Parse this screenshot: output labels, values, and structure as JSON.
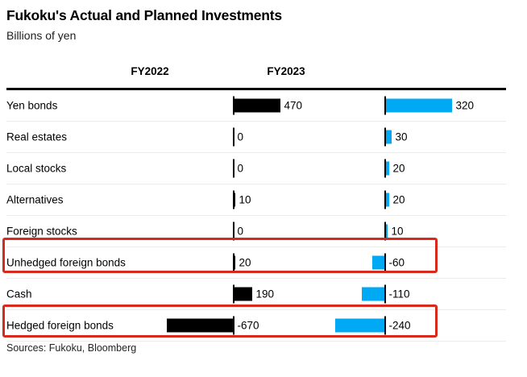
{
  "header": {
    "title": "Fukoku's Actual and Planned Investments",
    "subtitle": "Billions of yen"
  },
  "columns": [
    "FY2022",
    "FY2023"
  ],
  "chart_data": {
    "type": "bar",
    "orientation": "horizontal",
    "unit": "Billions of yen",
    "categories": [
      "Yen bonds",
      "Real estates",
      "Local stocks",
      "Alternatives",
      "Foreign stocks",
      "Unhedged foreign bonds",
      "Cash",
      "Hedged foreign bonds"
    ],
    "series": [
      {
        "name": "FY2022",
        "color": "#000000",
        "values": [
          470,
          0,
          0,
          10,
          0,
          20,
          190,
          -670
        ]
      },
      {
        "name": "FY2023",
        "color": "#00a9f4",
        "values": [
          320,
          30,
          20,
          20,
          10,
          -60,
          -110,
          -240
        ]
      }
    ],
    "value_labels": [
      [
        "470",
        "0",
        "0",
        "10",
        "0",
        "20",
        "190",
        "-670"
      ],
      [
        "320",
        "30",
        "20",
        "20",
        "10",
        "-60",
        "-110",
        "-240"
      ]
    ],
    "highlighted_categories": [
      "Unhedged foreign bonds",
      "Hedged foreign bonds"
    ],
    "highlight_color": "#d8291c",
    "axis_baseline": 0,
    "grid": "row-separators-only",
    "legend_position": "column-headers"
  },
  "footer": {
    "sources": "Sources: Fukoku, Bloomberg"
  }
}
